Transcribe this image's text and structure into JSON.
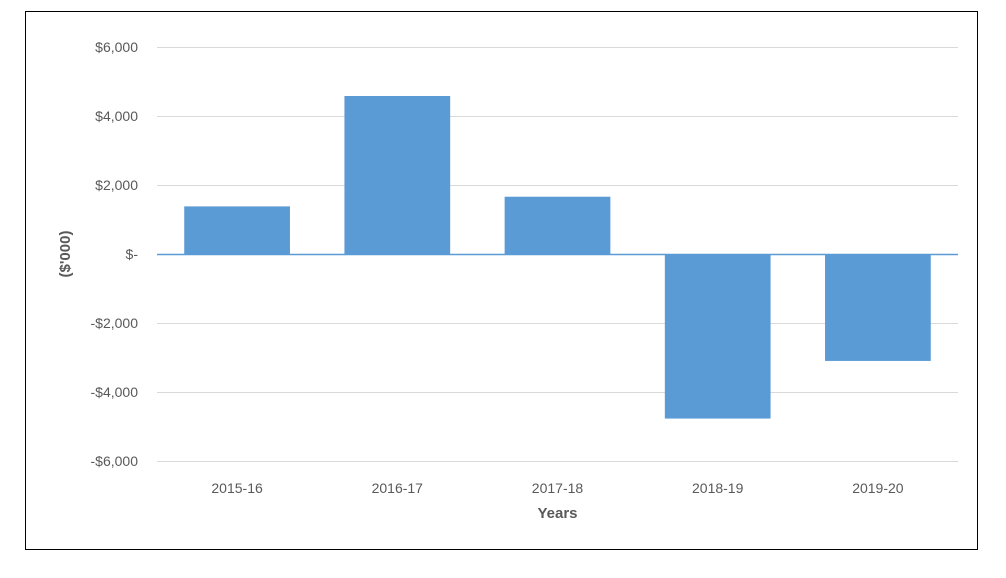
{
  "chart_data": {
    "type": "bar",
    "title": "",
    "xlabel": "Years",
    "ylabel": "($'000)",
    "categories": [
      "2015-16",
      "2016-17",
      "2017-18",
      "2018-19",
      "2019-20"
    ],
    "values": [
      1380,
      4580,
      1660,
      -4770,
      -3100
    ],
    "ylim": [
      -6000,
      6000
    ],
    "yticks": [
      6000,
      4000,
      2000,
      0,
      -2000,
      -4000,
      -6000
    ],
    "ytick_labels": [
      "$6,000",
      "$4,000",
      "$2,000",
      "$-",
      "-$2,000",
      "-$4,000",
      "-$6,000"
    ],
    "grid": true,
    "legend": "none",
    "bar_color": "#5b9bd5",
    "zero_line_color": "#5b9bd5",
    "grid_color": "#d9d9d9"
  }
}
